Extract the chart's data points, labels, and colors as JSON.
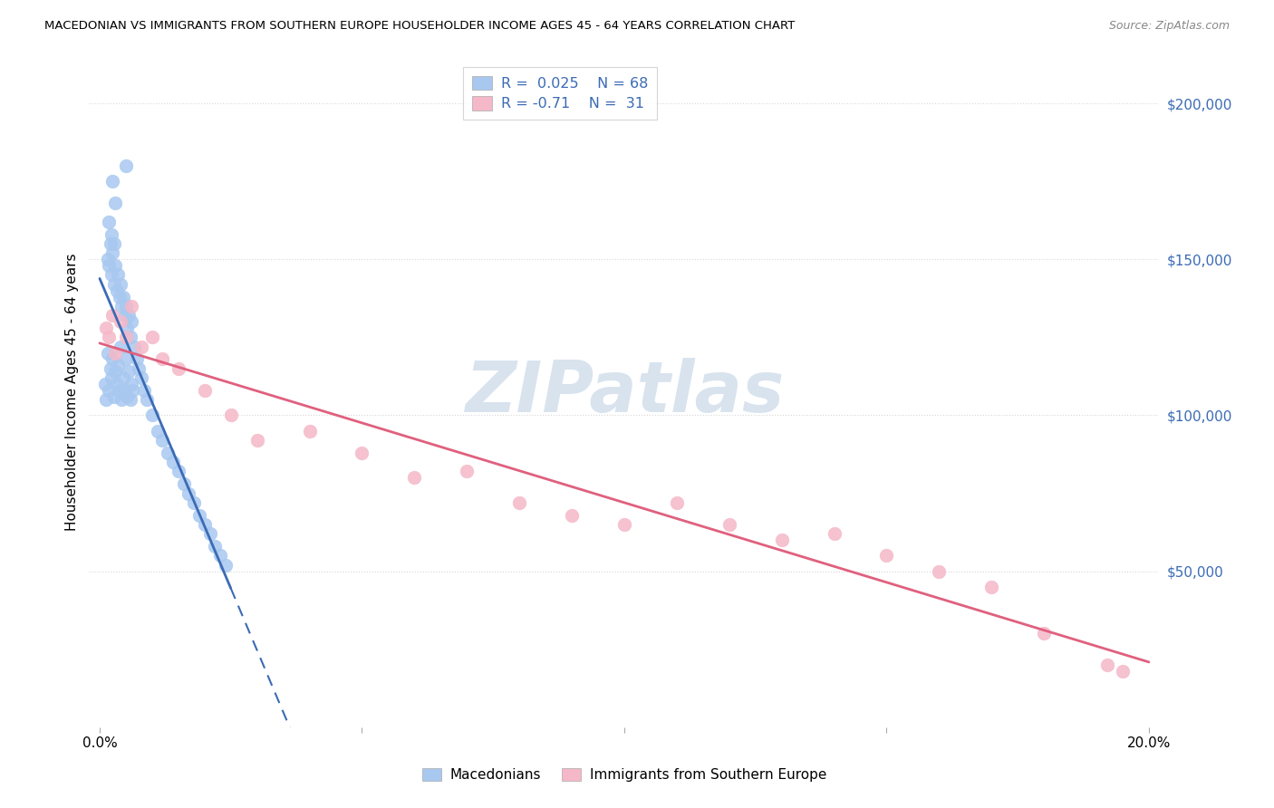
{
  "title": "MACEDONIAN VS IMMIGRANTS FROM SOUTHERN EUROPE HOUSEHOLDER INCOME AGES 45 - 64 YEARS CORRELATION CHART",
  "source": "Source: ZipAtlas.com",
  "ylabel": "Householder Income Ages 45 - 64 years",
  "y_ticks": [
    50000,
    100000,
    150000,
    200000
  ],
  "y_tick_labels": [
    "$50,000",
    "$100,000",
    "$150,000",
    "$200,000"
  ],
  "macedonian_R": 0.025,
  "macedonian_N": 68,
  "southern_europe_R": -0.71,
  "southern_europe_N": 31,
  "macedonian_color": "#A8C8F0",
  "southern_europe_color": "#F5B8C8",
  "macedonian_line_color": "#3B6BB5",
  "southern_europe_line_color": "#E0607E",
  "background_color": "#FFFFFF",
  "grid_color": "#D8D8D8",
  "watermark_color": "#C8D8E8",
  "legend_text_color": "#3B6BB5",
  "yaxis_color": "#3B6BB5",
  "mac_x": [
    0.001,
    0.0012,
    0.0015,
    0.0018,
    0.002,
    0.0022,
    0.0025,
    0.0028,
    0.003,
    0.0032,
    0.0035,
    0.0038,
    0.004,
    0.0042,
    0.0045,
    0.0048,
    0.005,
    0.0052,
    0.0055,
    0.0058,
    0.006,
    0.0062,
    0.0015,
    0.0018,
    0.002,
    0.0022,
    0.0025,
    0.0028,
    0.003,
    0.0032,
    0.0035,
    0.0038,
    0.004,
    0.0042,
    0.0045,
    0.0048,
    0.005,
    0.0052,
    0.0055,
    0.0058,
    0.006,
    0.0065,
    0.007,
    0.0075,
    0.008,
    0.0085,
    0.009,
    0.01,
    0.011,
    0.012,
    0.013,
    0.014,
    0.015,
    0.016,
    0.017,
    0.018,
    0.019,
    0.02,
    0.021,
    0.022,
    0.023,
    0.024,
    0.005,
    0.0025,
    0.003,
    0.0018,
    0.0022,
    0.0028
  ],
  "mac_y": [
    110000,
    105000,
    120000,
    108000,
    115000,
    112000,
    118000,
    106000,
    114000,
    110000,
    116000,
    108000,
    122000,
    105000,
    112000,
    108000,
    118000,
    106000,
    114000,
    105000,
    110000,
    108000,
    150000,
    148000,
    155000,
    145000,
    152000,
    142000,
    148000,
    140000,
    145000,
    138000,
    142000,
    135000,
    138000,
    132000,
    135000,
    128000,
    132000,
    125000,
    130000,
    122000,
    118000,
    115000,
    112000,
    108000,
    105000,
    100000,
    95000,
    92000,
    88000,
    85000,
    82000,
    78000,
    75000,
    72000,
    68000,
    65000,
    62000,
    58000,
    55000,
    52000,
    180000,
    175000,
    168000,
    162000,
    158000,
    155000
  ],
  "se_x": [
    0.0012,
    0.0018,
    0.0025,
    0.003,
    0.004,
    0.005,
    0.006,
    0.008,
    0.01,
    0.012,
    0.015,
    0.02,
    0.025,
    0.03,
    0.04,
    0.05,
    0.06,
    0.07,
    0.08,
    0.09,
    0.1,
    0.11,
    0.12,
    0.13,
    0.14,
    0.15,
    0.16,
    0.17,
    0.18,
    0.192,
    0.195
  ],
  "se_y": [
    128000,
    125000,
    132000,
    120000,
    130000,
    125000,
    135000,
    122000,
    125000,
    118000,
    115000,
    108000,
    100000,
    92000,
    95000,
    88000,
    80000,
    82000,
    72000,
    68000,
    65000,
    72000,
    65000,
    60000,
    62000,
    55000,
    50000,
    45000,
    30000,
    20000,
    18000
  ]
}
